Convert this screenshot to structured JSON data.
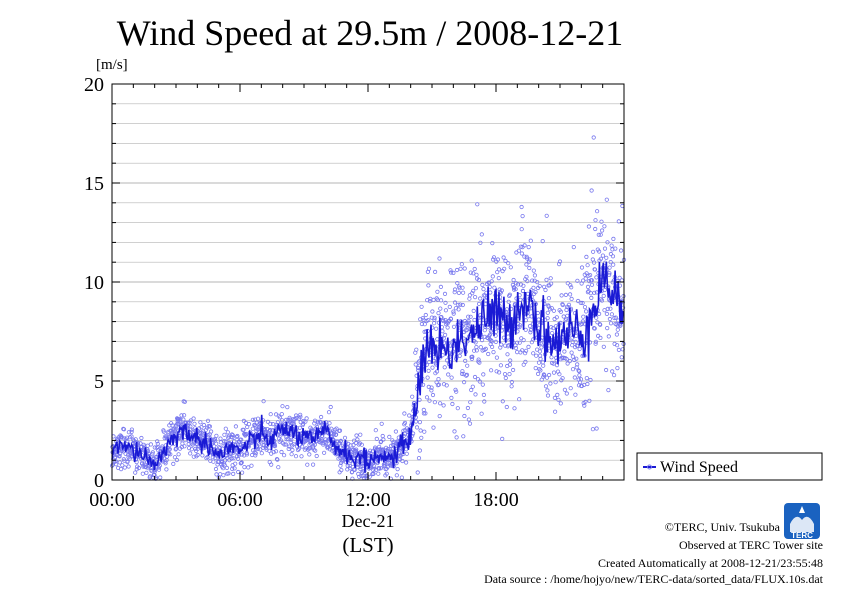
{
  "chart_data": {
    "type": "scatter",
    "title": "Wind Speed at 29.5m / 2008-12-21",
    "ylabel": "[m/s]",
    "xlabel": "(LST)",
    "date_label": "Dec-21",
    "x_unit": "hour",
    "xlim": [
      0,
      24
    ],
    "ylim": [
      0,
      20
    ],
    "x_tick_values": [
      0,
      6,
      12,
      18
    ],
    "x_tick_labels": [
      "00:00",
      "06:00",
      "12:00",
      "18:00"
    ],
    "y_ticks": [
      0,
      5,
      10,
      15,
      20
    ],
    "y_minor_step": 1,
    "grid": true,
    "legend_position": "bottom-right",
    "series": [
      {
        "name": "Wind Speed",
        "style": "line with scattered points",
        "x": [
          0,
          0.5,
          1,
          1.5,
          2,
          2.5,
          3,
          3.5,
          4,
          4.5,
          5,
          5.5,
          6,
          6.5,
          7,
          7.5,
          8,
          8.5,
          9,
          9.5,
          10,
          10.5,
          11,
          11.5,
          12,
          12.5,
          13,
          13.5,
          14,
          14.5,
          15,
          15.5,
          16,
          16.5,
          17,
          17.5,
          18,
          18.5,
          19,
          19.5,
          20,
          20.5,
          21,
          21.5,
          22,
          22.5,
          23,
          23.5,
          24
        ],
        "values": [
          1.4,
          1.7,
          1.5,
          1.3,
          0.7,
          1.6,
          2.3,
          2.5,
          2.0,
          1.9,
          1.2,
          1.6,
          1.5,
          1.9,
          2.3,
          2.0,
          2.6,
          2.4,
          2.1,
          2.0,
          2.5,
          1.7,
          1.3,
          1.1,
          0.9,
          1.3,
          1.0,
          1.6,
          2.2,
          5.8,
          7.0,
          6.4,
          6.8,
          7.2,
          7.6,
          8.0,
          8.5,
          7.5,
          8.8,
          9.2,
          8.0,
          7.2,
          6.8,
          7.6,
          7.2,
          8.8,
          10.2,
          9.4,
          8.6
        ]
      }
    ],
    "colors": {
      "line": "#1a1ad4",
      "points": "#7777ee",
      "grid": "#b4b4b4"
    }
  },
  "footer": {
    "credit": "©TERC, Univ. Tsukuba",
    "site": "Observed at TERC Tower site",
    "created": "Created Automatically at 2008-12-21/23:55:48",
    "source": "Data source : /home/hojyo/new/TERC-data/sorted_data/FLUX.10s.dat",
    "logo_text": "TERC"
  }
}
